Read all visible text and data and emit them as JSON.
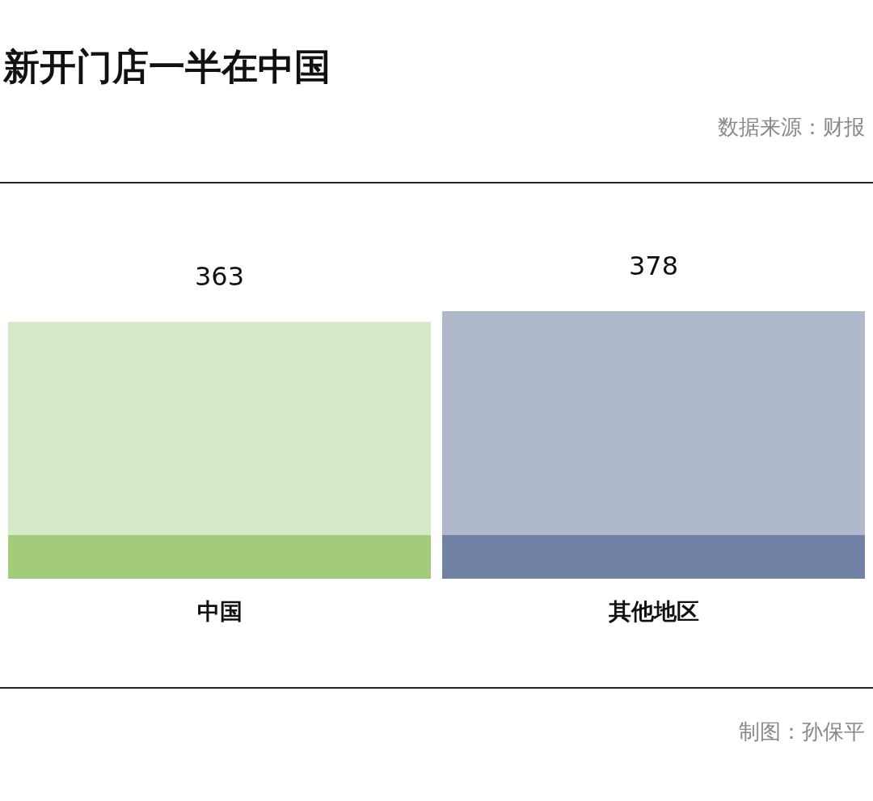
{
  "chart_data": {
    "type": "bar",
    "title": "新开门店一半在中国",
    "annotations": [
      "数据来源：财报",
      "制图：孙保平"
    ],
    "categories": [
      "中国",
      "其他地区"
    ],
    "values": [
      363,
      378
    ],
    "colors": [
      "#d6e8c5",
      "#b0b9cc"
    ],
    "data_labels": true
  }
}
